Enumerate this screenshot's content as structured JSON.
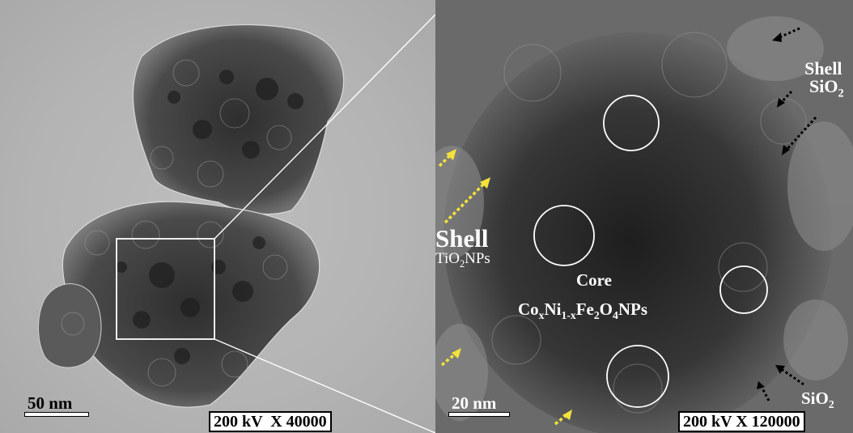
{
  "left": {
    "scale_label": "50 nm",
    "info_box": "200 kV  X 40000"
  },
  "right": {
    "scale_label": "20 nm",
    "info_box": "200 kV X 120000",
    "shell_sio2_title": "Shell",
    "shell_sio2_formula": "SiO",
    "shell_sio2_sub": "2",
    "shell_tio2_title": "Shell",
    "shell_tio2_formula": "TiO",
    "shell_tio2_sub": "2",
    "shell_tio2_tail": "NPs",
    "core_title": "Core",
    "core_formula_co": "Co",
    "core_sub_x": "x",
    "core_ni": "Ni",
    "core_sub_1x": "1-x",
    "core_fe": "Fe",
    "core_sub_2": "2",
    "core_o": "O",
    "core_sub_4": "4",
    "core_tail": "NPs",
    "sio2_bottom": "SiO",
    "sio2_bottom_sub": "2"
  },
  "colors": {
    "arrow_black": "#000000",
    "arrow_yellow": "#f2e23a",
    "annotation_white": "#ffffff"
  }
}
